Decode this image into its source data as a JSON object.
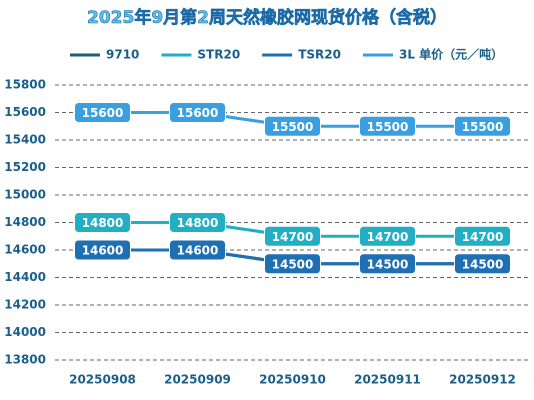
{
  "chart_data": {
    "type": "line",
    "title": "2025年9月第2周天然橡胶网现货价格（含税）",
    "categories": [
      "20250908",
      "20250909",
      "20250910",
      "20250911",
      "20250912"
    ],
    "series": [
      {
        "name": "9710",
        "color": "#1d5d78",
        "values": [
          14600,
          14600,
          14500,
          14500,
          14500
        ]
      },
      {
        "name": "STR20",
        "color": "#22aec4",
        "values": [
          14800,
          14800,
          14700,
          14700,
          14700
        ]
      },
      {
        "name": "TSR20",
        "color": "#1f6fb4",
        "values": [
          14600,
          14600,
          14500,
          14500,
          14500
        ]
      },
      {
        "name": "3L 单价（元／吨）",
        "color": "#3a9fe0",
        "values": [
          15600,
          15600,
          15500,
          15500,
          15500
        ]
      }
    ],
    "ylim": [
      13800,
      15800
    ],
    "yticks": [
      13800,
      14000,
      14200,
      14400,
      14600,
      14800,
      15000,
      15200,
      15400,
      15600,
      15800
    ],
    "grid": true
  }
}
